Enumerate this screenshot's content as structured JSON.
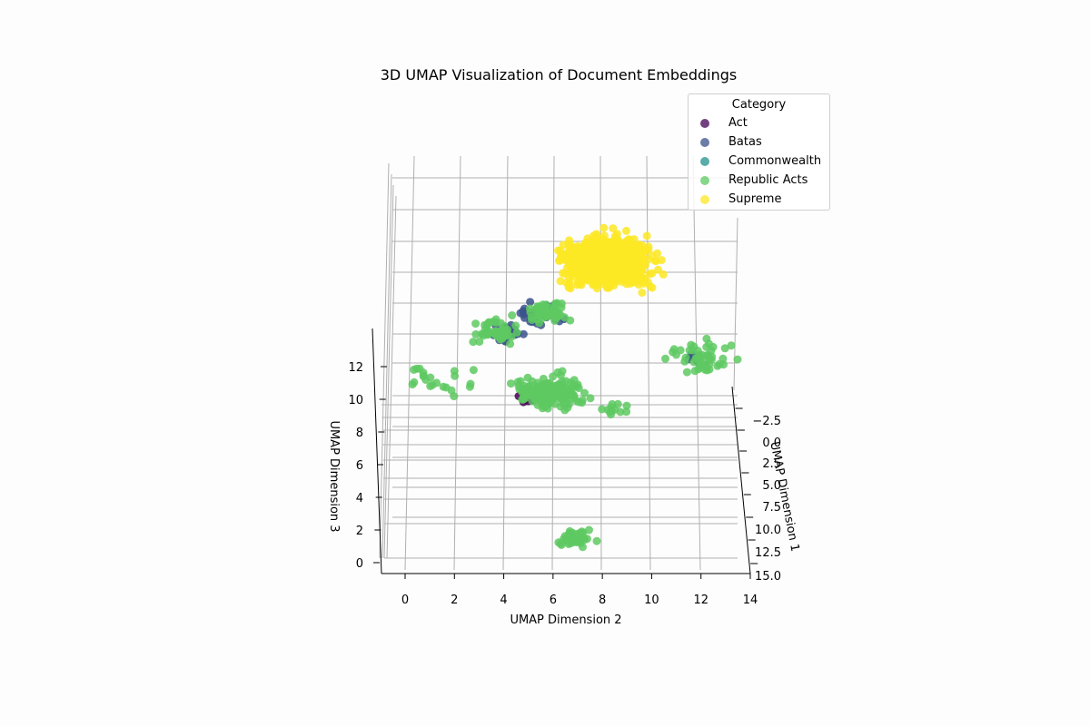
{
  "chart_data": {
    "type": "scatter",
    "projection": "3d",
    "title": "3D UMAP Visualization of Document Embeddings",
    "xlabel": "UMAP Dimension 1",
    "ylabel": "UMAP Dimension 2",
    "zlabel": "UMAP Dimension 3",
    "xlim": [
      -5,
      15
    ],
    "ylim": [
      -1,
      14
    ],
    "zlim": [
      -1,
      14
    ],
    "x_ticks": [
      "−2.5",
      "0.0",
      "2.5",
      "5.0",
      "7.5",
      "10.0",
      "12.5",
      "15.0"
    ],
    "y_ticks": [
      "0",
      "2",
      "4",
      "6",
      "8",
      "10",
      "12",
      "14"
    ],
    "z_ticks": [
      "0",
      "2",
      "4",
      "6",
      "8",
      "10",
      "12"
    ],
    "grid": true,
    "legend": {
      "title": "Category",
      "placement": "top-right",
      "entries": [
        "Act",
        "Batas",
        "Commonwealth",
        "Republic Acts",
        "Supreme"
      ]
    },
    "series": [
      {
        "name": "Act",
        "color": "#440154",
        "clusters": [
          {
            "x": 5,
            "y": 4.9,
            "z": 7.8,
            "n": 14,
            "spread": 0.4
          }
        ]
      },
      {
        "name": "Batas",
        "color": "#3b528b",
        "clusters": [
          {
            "x": 0,
            "y": 5.3,
            "z": 10.5,
            "n": 40,
            "spread": 0.45
          },
          {
            "x": 1,
            "y": 3.8,
            "z": 9.9,
            "n": 18,
            "spread": 0.4
          },
          {
            "x": 5,
            "y": 5.5,
            "z": 8,
            "n": 12,
            "spread": 0.4
          },
          {
            "x": 0,
            "y": 12.4,
            "z": 7.7,
            "n": 6,
            "spread": 0.25
          }
        ]
      },
      {
        "name": "Commonwealth",
        "color": "#21918c",
        "clusters": [
          {
            "x": 5,
            "y": 5.9,
            "z": 8,
            "n": 6,
            "spread": 0.4
          }
        ]
      },
      {
        "name": "Republic Acts",
        "color": "#5ec962",
        "clusters": [
          {
            "x": 5,
            "y": 5.8,
            "z": 8,
            "n": 170,
            "spread": 0.7
          },
          {
            "x": 0,
            "y": 5.7,
            "z": 10.6,
            "n": 60,
            "spread": 0.5
          },
          {
            "x": 1,
            "y": 3.4,
            "z": 9.8,
            "n": 45,
            "spread": 0.55
          },
          {
            "x": 5,
            "y": 1,
            "z": 8.7,
            "n": 22,
            "spread": 0.8
          },
          {
            "x": 0,
            "y": 12.6,
            "z": 7.9,
            "n": 50,
            "spread": 0.7
          },
          {
            "x": 12,
            "y": 6.9,
            "z": 2.3,
            "n": 40,
            "spread": 0.4
          },
          {
            "x": 5,
            "y": 8.6,
            "z": 6.9,
            "n": 12,
            "spread": 0.3
          }
        ]
      },
      {
        "name": "Supreme",
        "color": "#fde725",
        "clusters": [
          {
            "x": -3,
            "y": 8.4,
            "z": 12.3,
            "n": 900,
            "spread": 1.0
          }
        ]
      }
    ]
  }
}
